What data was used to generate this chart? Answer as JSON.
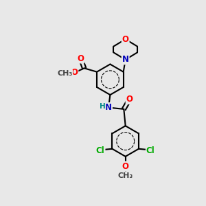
{
  "bg_color": "#e8e8e8",
  "bond_color": "#000000",
  "bond_width": 1.5,
  "atom_colors": {
    "O": "#ff0000",
    "N": "#0000bb",
    "Cl": "#00aa00",
    "C": "#000000",
    "H": "#008888"
  },
  "font_size": 8.5,
  "fig_size": [
    3.0,
    3.0
  ],
  "dpi": 100
}
